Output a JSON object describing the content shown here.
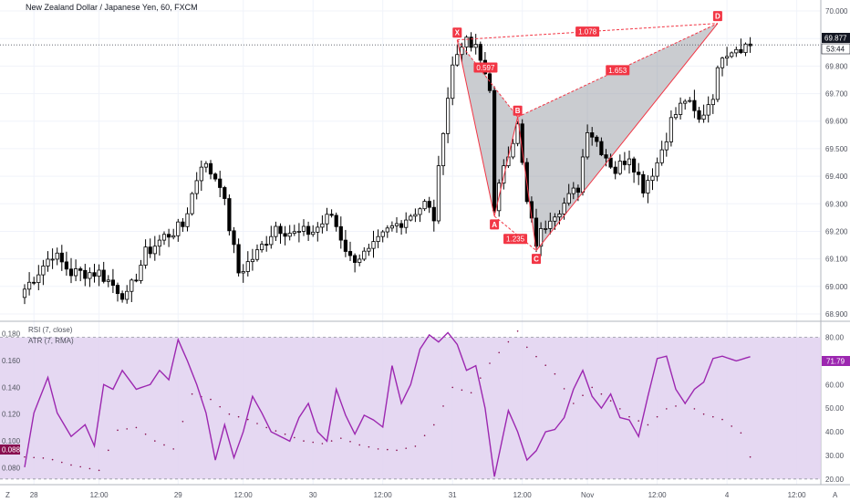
{
  "header": {
    "title": "New Zealand Dollar / Japanese Yen, 60, FXCM"
  },
  "price_axis": {
    "ticks": [
      "70.000",
      "69.900",
      "69.800",
      "69.700",
      "69.600",
      "69.500",
      "69.400",
      "69.300",
      "69.200",
      "69.100",
      "69.000",
      "68.900"
    ],
    "last_price": "69.877",
    "countdown": "53:44"
  },
  "indicators": {
    "rsi_legend": "RSI (7, close)",
    "atr_legend": "ATR (7, RMA)",
    "rsi_ticks": [
      "80.00",
      "70.00",
      "60.00",
      "50.00",
      "40.00",
      "30.00",
      "20.00"
    ],
    "atr_ticks": [
      "0.180",
      "0.160",
      "0.140",
      "0.120",
      "0.100",
      "0.080"
    ],
    "rsi_value": "71.79",
    "atr_value": "0.088"
  },
  "time_axis": {
    "labels": [
      "28",
      "12:00",
      "29",
      "12:00",
      "30",
      "12:00",
      "31",
      "12:00",
      "Nov",
      "12:00",
      "4",
      "12:00"
    ],
    "corner_left": "Z",
    "corner_right": "A"
  },
  "colors": {
    "bull": "#ffffff",
    "bear": "#000000",
    "pattern": "#f23645",
    "rsi_line": "#9c27b0",
    "rsi_band": "#e1d1f0",
    "atr": "#880e4f"
  },
  "chart_data": {
    "type": "candlestick",
    "title": "New Zealand Dollar / Japanese Yen, 60, FXCM",
    "ylim": [
      68.88,
      70.03
    ],
    "x_count": 157,
    "ohlc": [],
    "pattern": {
      "points": [
        {
          "label": "X",
          "i": 93,
          "price": 69.895
        },
        {
          "label": "A",
          "i": 101,
          "price": 69.255
        },
        {
          "label": "B",
          "i": 106,
          "price": 69.615
        },
        {
          "label": "C",
          "i": 110,
          "price": 69.13
        },
        {
          "label": "D",
          "i": 149,
          "price": 69.955
        }
      ],
      "ratios": [
        {
          "value": "1.078",
          "between": [
            "X",
            "D"
          ]
        },
        {
          "value": "0.597",
          "between": [
            "X",
            "B"
          ]
        },
        {
          "value": "1.653",
          "between": [
            "B",
            "D"
          ]
        },
        {
          "value": "1.235",
          "between": [
            "A",
            "C"
          ]
        }
      ]
    },
    "rsi": {
      "ylim": [
        18,
        86
      ],
      "band": [
        70,
        30
      ],
      "values": []
    },
    "atr": {
      "ylim": [
        0.068,
        0.188
      ],
      "values": []
    }
  }
}
